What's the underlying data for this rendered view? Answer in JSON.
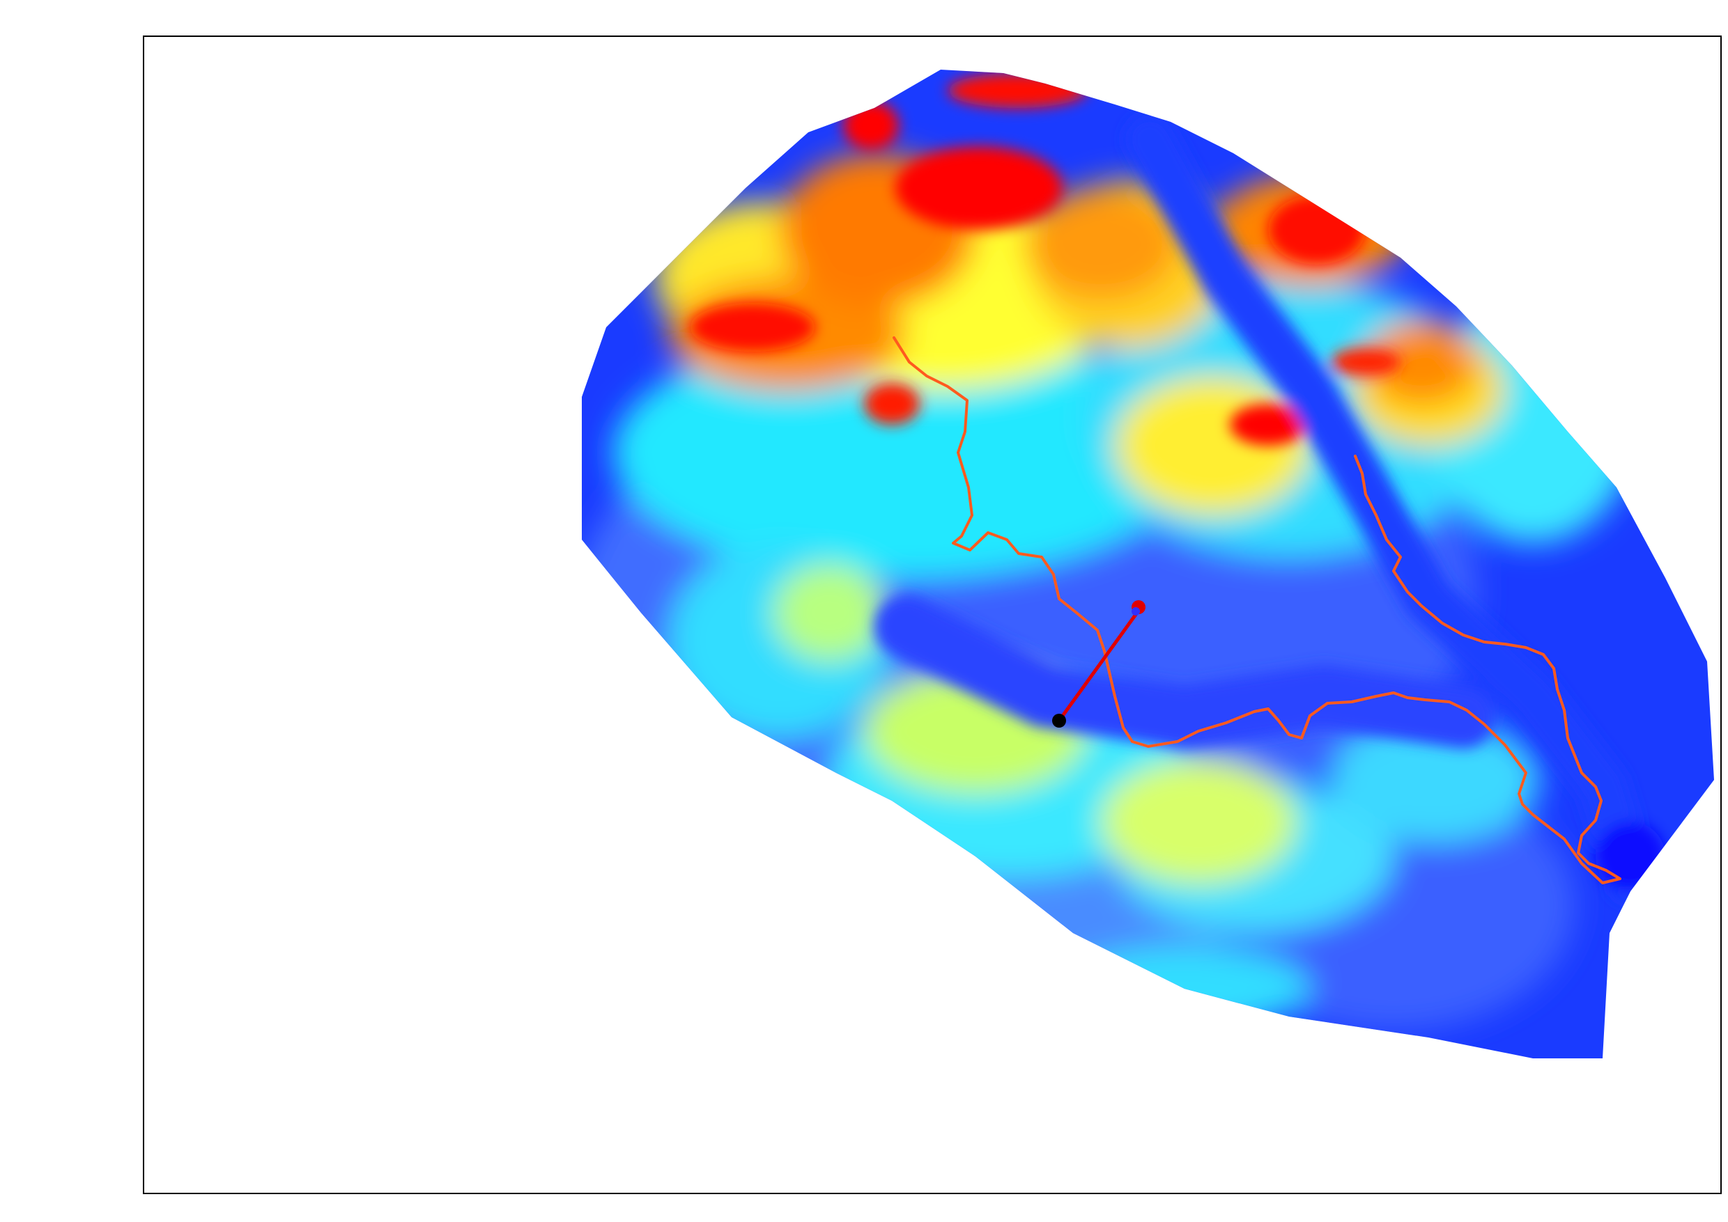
{
  "map": {
    "colormap": "jet",
    "colors": {
      "frame": "#000000",
      "background": "#ffffff",
      "river": "#ff5a1e",
      "transect": "#e00000",
      "start_point": "#000000",
      "end_point": "#e00000",
      "end_point_inner": "#3030ff"
    }
  }
}
